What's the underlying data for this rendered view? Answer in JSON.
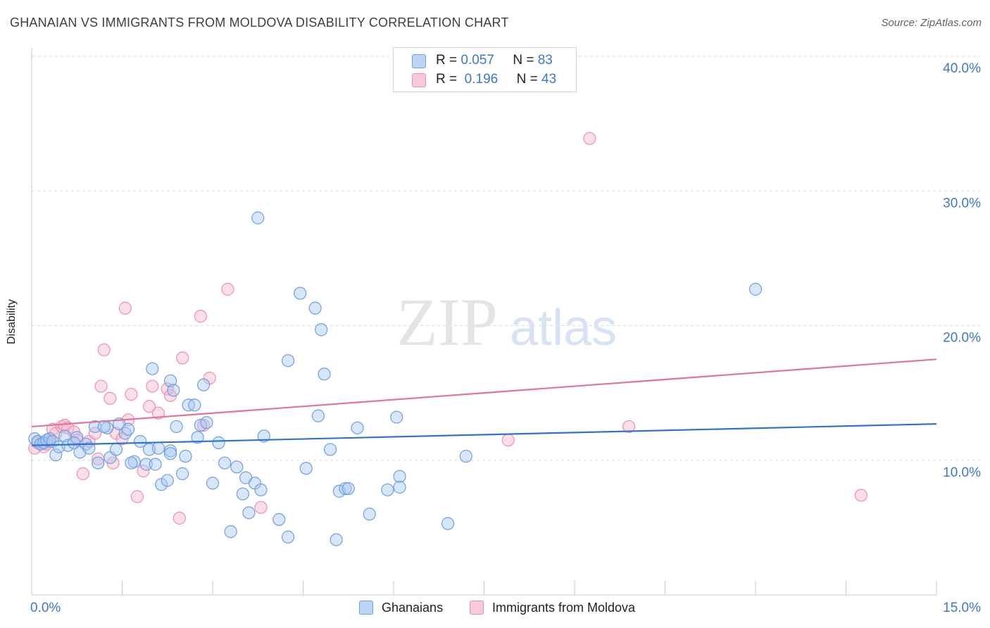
{
  "title": "GHANAIAN VS IMMIGRANTS FROM MOLDOVA DISABILITY CORRELATION CHART",
  "source": "Source: ZipAtlas.com",
  "watermark": {
    "zip": "ZIP",
    "atlas": "atlas"
  },
  "legend": {
    "rows": [
      {
        "r_label": "R =",
        "r_value": "0.057",
        "n_label": "N =",
        "n_value": "83"
      },
      {
        "r_label": "R =",
        "r_value": "0.196",
        "n_label": "N =",
        "n_value": "43"
      }
    ]
  },
  "bottom_legend": {
    "series1": "Ghanaians",
    "series2": "Immigrants from Moldova"
  },
  "colors": {
    "blue_fill": "#a9c8f2",
    "blue_stroke": "#6e9fe0",
    "blue_line": "#2e74c9",
    "pink_fill": "#f6b9cc",
    "pink_stroke": "#ee90ad",
    "pink_line": "#e0749a",
    "axis_text": "#3b78c9",
    "grid": "#d9d9d9"
  },
  "chart_data": {
    "type": "scatter",
    "title": "GHANAIAN VS IMMIGRANTS FROM MOLDOVA DISABILITY CORRELATION CHART",
    "xlabel": "",
    "ylabel": "Disability",
    "xlim": [
      0,
      15
    ],
    "ylim": [
      0,
      40
    ],
    "x_tick_labels": [
      "0.0%",
      "15.0%"
    ],
    "y_ticks": [
      10,
      20,
      30,
      40
    ],
    "y_tick_labels": [
      "10.0%",
      "20.0%",
      "30.0%",
      "40.0%"
    ],
    "grid": true,
    "legend_position": "top-center",
    "series": [
      {
        "name": "Ghanaians",
        "r": 0.057,
        "n": 83,
        "trend": [
          [
            0,
            11.1
          ],
          [
            15,
            12.7
          ]
        ],
        "points": [
          [
            0.05,
            11.6
          ],
          [
            0.1,
            11.4
          ],
          [
            0.15,
            11.2
          ],
          [
            0.2,
            11.3
          ],
          [
            0.25,
            11.5
          ],
          [
            0.3,
            11.6
          ],
          [
            0.35,
            11.4
          ],
          [
            0.4,
            10.4
          ],
          [
            0.45,
            11.0
          ],
          [
            0.55,
            11.8
          ],
          [
            0.6,
            11.1
          ],
          [
            0.75,
            11.7
          ],
          [
            0.8,
            10.6
          ],
          [
            0.9,
            11.2
          ],
          [
            0.95,
            10.9
          ],
          [
            1.05,
            12.5
          ],
          [
            1.1,
            9.8
          ],
          [
            1.25,
            12.4
          ],
          [
            1.3,
            10.2
          ],
          [
            1.4,
            10.8
          ],
          [
            1.45,
            12.7
          ],
          [
            1.55,
            12.0
          ],
          [
            1.6,
            12.3
          ],
          [
            1.7,
            9.9
          ],
          [
            1.8,
            11.4
          ],
          [
            1.9,
            9.7
          ],
          [
            1.95,
            10.8
          ],
          [
            2.0,
            16.8
          ],
          [
            2.05,
            9.7
          ],
          [
            2.1,
            10.9
          ],
          [
            2.15,
            8.2
          ],
          [
            2.3,
            15.9
          ],
          [
            2.35,
            15.2
          ],
          [
            2.3,
            10.7
          ],
          [
            2.3,
            10.5
          ],
          [
            2.4,
            12.5
          ],
          [
            2.5,
            9.0
          ],
          [
            2.55,
            10.3
          ],
          [
            2.6,
            14.1
          ],
          [
            2.7,
            14.1
          ],
          [
            2.75,
            11.7
          ],
          [
            2.8,
            12.6
          ],
          [
            2.85,
            15.6
          ],
          [
            2.9,
            12.8
          ],
          [
            3.0,
            8.3
          ],
          [
            3.1,
            11.3
          ],
          [
            3.2,
            9.8
          ],
          [
            3.3,
            4.7
          ],
          [
            3.4,
            9.5
          ],
          [
            3.5,
            7.5
          ],
          [
            3.55,
            8.7
          ],
          [
            3.6,
            6.1
          ],
          [
            3.7,
            8.3
          ],
          [
            3.8,
            7.8
          ],
          [
            3.75,
            28.0
          ],
          [
            3.85,
            11.8
          ],
          [
            4.1,
            5.6
          ],
          [
            4.25,
            17.4
          ],
          [
            4.25,
            4.3
          ],
          [
            4.45,
            22.4
          ],
          [
            4.55,
            9.4
          ],
          [
            4.7,
            21.3
          ],
          [
            4.75,
            13.3
          ],
          [
            4.8,
            19.7
          ],
          [
            4.85,
            16.4
          ],
          [
            4.95,
            10.8
          ],
          [
            5.05,
            4.1
          ],
          [
            5.1,
            7.7
          ],
          [
            5.2,
            7.9
          ],
          [
            5.25,
            7.9
          ],
          [
            5.4,
            12.4
          ],
          [
            5.6,
            6.0
          ],
          [
            5.9,
            7.8
          ],
          [
            6.05,
            13.2
          ],
          [
            6.1,
            8.8
          ],
          [
            6.1,
            8.0
          ],
          [
            6.9,
            5.3
          ],
          [
            7.2,
            10.3
          ],
          [
            12.0,
            22.7
          ],
          [
            1.2,
            12.5
          ],
          [
            0.7,
            11.3
          ],
          [
            1.65,
            9.8
          ],
          [
            2.25,
            8.5
          ]
        ]
      },
      {
        "name": "Immigrants from Moldova",
        "r": 0.196,
        "n": 43,
        "trend": [
          [
            0,
            12.5
          ],
          [
            15,
            17.5
          ]
        ],
        "points": [
          [
            0.05,
            10.9
          ],
          [
            0.1,
            11.3
          ],
          [
            0.2,
            11.0
          ],
          [
            0.25,
            11.2
          ],
          [
            0.3,
            11.4
          ],
          [
            0.35,
            12.3
          ],
          [
            0.4,
            12.0
          ],
          [
            0.5,
            12.5
          ],
          [
            0.55,
            12.6
          ],
          [
            0.6,
            12.4
          ],
          [
            0.7,
            12.1
          ],
          [
            0.75,
            11.5
          ],
          [
            0.85,
            9.0
          ],
          [
            0.95,
            11.4
          ],
          [
            1.05,
            12.0
          ],
          [
            1.1,
            10.1
          ],
          [
            1.15,
            15.5
          ],
          [
            1.2,
            18.2
          ],
          [
            1.3,
            14.6
          ],
          [
            1.35,
            9.8
          ],
          [
            1.4,
            12.0
          ],
          [
            1.5,
            11.6
          ],
          [
            1.55,
            21.3
          ],
          [
            1.6,
            13.0
          ],
          [
            1.65,
            14.9
          ],
          [
            1.75,
            7.3
          ],
          [
            1.85,
            9.2
          ],
          [
            1.95,
            14.0
          ],
          [
            2.0,
            15.5
          ],
          [
            2.1,
            13.5
          ],
          [
            2.25,
            15.3
          ],
          [
            2.3,
            14.8
          ],
          [
            2.45,
            5.7
          ],
          [
            2.5,
            17.6
          ],
          [
            2.8,
            20.7
          ],
          [
            2.85,
            12.6
          ],
          [
            2.95,
            16.1
          ],
          [
            3.25,
            22.7
          ],
          [
            3.8,
            6.5
          ],
          [
            7.9,
            11.5
          ],
          [
            9.25,
            33.9
          ],
          [
            9.9,
            12.5
          ],
          [
            13.75,
            7.4
          ]
        ]
      }
    ]
  }
}
